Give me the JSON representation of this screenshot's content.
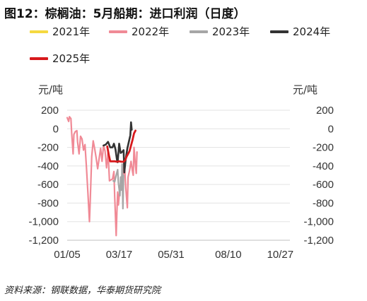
{
  "title": "图12：棕榈油：5月船期：进口利润（日度）",
  "source": "资料来源：钢联数据，华泰期货研究院",
  "chart_data": {
    "type": "line",
    "left_unit": "元/吨",
    "right_unit": "元/吨",
    "ylim": [
      -1200,
      200
    ],
    "yticks": [
      200,
      0,
      -200,
      -400,
      -600,
      -800,
      -1000,
      -1200
    ],
    "ytick_labels": [
      "200",
      "0",
      "-200",
      "-400",
      "-600",
      "-800",
      "-1,000",
      "-1,200"
    ],
    "xlim": [
      0,
      300
    ],
    "xticks": [
      0,
      70,
      140,
      217,
      287
    ],
    "xtick_labels": [
      "01/05",
      "03/17",
      "05/31",
      "08/10",
      "10/27"
    ],
    "grid": true,
    "legend_position": "top",
    "series": [
      {
        "name": "2021年",
        "color": "#F5D940",
        "points": []
      },
      {
        "name": "2022年",
        "color": "#F08A96",
        "points": [
          [
            0,
            120
          ],
          [
            2,
            80
          ],
          [
            3,
            130
          ],
          [
            5,
            110
          ],
          [
            6,
            -40
          ],
          [
            8,
            -270
          ],
          [
            9,
            -60
          ],
          [
            11,
            -30
          ],
          [
            13,
            -20
          ],
          [
            14,
            -140
          ],
          [
            16,
            -270
          ],
          [
            18,
            -80
          ],
          [
            20,
            -110
          ],
          [
            22,
            -230
          ],
          [
            24,
            -170
          ],
          [
            26,
            -420
          ],
          [
            28,
            -700
          ],
          [
            30,
            -1000
          ],
          [
            31,
            -800
          ],
          [
            33,
            -300
          ],
          [
            35,
            -130
          ],
          [
            37,
            -210
          ],
          [
            39,
            -310
          ],
          [
            41,
            -430
          ],
          [
            43,
            -320
          ],
          [
            45,
            -210
          ],
          [
            47,
            -350
          ],
          [
            49,
            -180
          ],
          [
            51,
            -240
          ],
          [
            53,
            -420
          ],
          [
            55,
            -250
          ],
          [
            57,
            -560
          ],
          [
            59,
            -550
          ],
          [
            61,
            -540
          ],
          [
            63,
            -460
          ],
          [
            64,
            -730
          ],
          [
            66,
            -1150
          ],
          [
            67,
            -900
          ],
          [
            68,
            -680
          ],
          [
            69,
            -820
          ],
          [
            71,
            -640
          ],
          [
            73,
            -530
          ],
          [
            75,
            -560
          ],
          [
            77,
            -350
          ],
          [
            79,
            -640
          ],
          [
            81,
            -850
          ],
          [
            82,
            -520
          ],
          [
            84,
            -450
          ],
          [
            86,
            -350
          ],
          [
            88,
            -460
          ],
          [
            89,
            -500
          ],
          [
            90,
            -200
          ],
          [
            92,
            -400
          ],
          [
            93,
            -480
          ],
          [
            94,
            -250
          ]
        ]
      },
      {
        "name": "2023年",
        "color": "#A6A6A6",
        "points": [
          [
            62,
            -560
          ],
          [
            64,
            -570
          ],
          [
            66,
            -500
          ],
          [
            68,
            -440
          ],
          [
            69,
            -580
          ],
          [
            71,
            -720
          ],
          [
            72,
            -520
          ],
          [
            73,
            -660
          ],
          [
            74,
            -380
          ],
          [
            75,
            -860
          ],
          [
            76,
            -500
          ]
        ]
      },
      {
        "name": "2024年",
        "color": "#333333",
        "points": [
          [
            49,
            -180
          ],
          [
            52,
            -170
          ],
          [
            55,
            -140
          ],
          [
            58,
            -200
          ],
          [
            61,
            -200
          ],
          [
            63,
            -160
          ],
          [
            65,
            -220
          ],
          [
            67,
            -330
          ],
          [
            68,
            -360
          ],
          [
            70,
            -160
          ],
          [
            72,
            -260
          ],
          [
            74,
            -250
          ],
          [
            76,
            -230
          ],
          [
            77,
            -470
          ],
          [
            79,
            -320
          ],
          [
            81,
            -210
          ],
          [
            83,
            -140
          ],
          [
            85,
            -70
          ],
          [
            86,
            70
          ],
          [
            87,
            -10
          ]
        ]
      },
      {
        "name": "2025年",
        "color": "#D7191C",
        "points": [
          [
            54,
            -190
          ],
          [
            56,
            -280
          ],
          [
            58,
            -350
          ],
          [
            61,
            -350
          ],
          [
            64,
            -350
          ],
          [
            67,
            -355
          ],
          [
            70,
            -350
          ],
          [
            73,
            -355
          ],
          [
            76,
            -355
          ],
          [
            78,
            -340
          ],
          [
            80,
            -300
          ],
          [
            82,
            -270
          ],
          [
            84,
            -240
          ],
          [
            86,
            -180
          ],
          [
            88,
            -120
          ],
          [
            90,
            -50
          ],
          [
            92,
            -20
          ]
        ]
      }
    ]
  }
}
